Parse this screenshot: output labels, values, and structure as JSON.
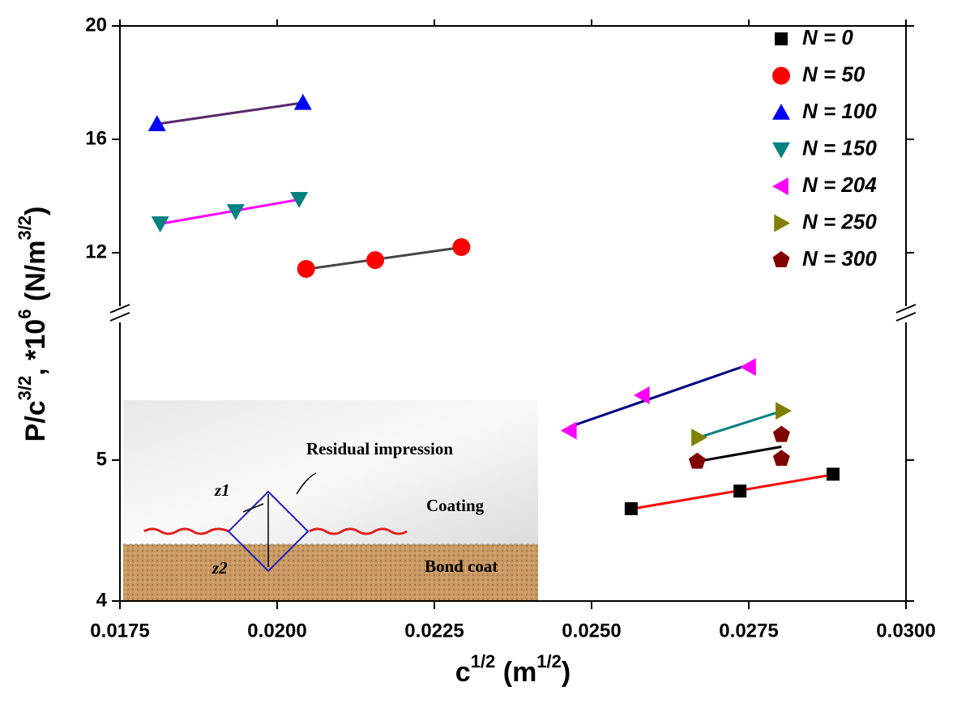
{
  "chart_data": {
    "type": "scatter",
    "x_label": [
      {
        "text": "c"
      },
      {
        "text": "1/2",
        "sup": true
      },
      {
        "text": " (m"
      },
      {
        "text": "1/2",
        "sup": true
      },
      {
        "text": ")"
      }
    ],
    "y_label": [
      {
        "text": "P/c"
      },
      {
        "text": "3/2",
        "sup": true
      },
      {
        "text": ", *10"
      },
      {
        "text": "6",
        "sup": true
      },
      {
        "text": " (N/m"
      },
      {
        "text": "3/2",
        "sup": true
      },
      {
        "text": ")"
      }
    ],
    "xlim": [
      0.0175,
      0.03
    ],
    "xticks": [
      0.0175,
      {
        "value": 0.02,
        "label": "0.0200"
      },
      0.0225,
      {
        "value": 0.025,
        "label": "0.0250"
      },
      0.0275,
      {
        "value": 0.03,
        "label": "0.0300"
      }
    ],
    "ylim": [
      4,
      20
    ],
    "y_break": [
      6,
      10
    ],
    "yticks": [
      4,
      5,
      12,
      16,
      20
    ],
    "legend": "upper right",
    "series": [
      {
        "name": "N = 0",
        "color": "#000000",
        "marker": "square",
        "fit_color": "#ff0000",
        "x": [
          0.02563,
          0.02736,
          0.02884
        ],
        "values": [
          4.655,
          4.78,
          4.9
        ]
      },
      {
        "name": "N = 50",
        "color": "#ff0000",
        "marker": "circle",
        "fit_color": "#444444",
        "x": [
          0.02046,
          0.02156,
          0.02293
        ],
        "values": [
          11.43,
          11.74,
          12.2
        ]
      },
      {
        "name": "N = 100",
        "color": "#0000ff",
        "marker": "triangle-up",
        "fit_color": "#5a2a6a",
        "x": [
          0.01809,
          0.02041
        ],
        "values": [
          16.54,
          17.29
        ]
      },
      {
        "name": "N = 150",
        "color": "#008080",
        "marker": "triangle-down",
        "fit_color": "#ff00ff",
        "x": [
          0.01814,
          0.01934,
          0.02035
        ],
        "values": [
          13.03,
          13.46,
          13.89
        ]
      },
      {
        "name": "N = 204",
        "color": "#ff00ff",
        "marker": "triangle-left",
        "fit_color": "#000080",
        "x": [
          0.02465,
          0.02581,
          0.0275
        ],
        "values": [
          5.21,
          5.46,
          5.66
        ]
      },
      {
        "name": "N = 250",
        "color": "#808000",
        "marker": "triangle-right",
        "fit_color": "#008080",
        "x": [
          0.0267,
          0.02804
        ],
        "values": [
          5.16,
          5.35
        ]
      },
      {
        "name": "N = 300",
        "color": "#800000",
        "marker": "pentagon",
        "fit_color": "#000000",
        "x": [
          0.02668,
          0.02802,
          0.02802
        ],
        "values": [
          4.99,
          5.18,
          5.01
        ]
      }
    ],
    "inset": {
      "residual": "Residual impression",
      "coating": "Coating",
      "bond": "Bond coat",
      "z1": "z1",
      "z2": "z2"
    }
  }
}
